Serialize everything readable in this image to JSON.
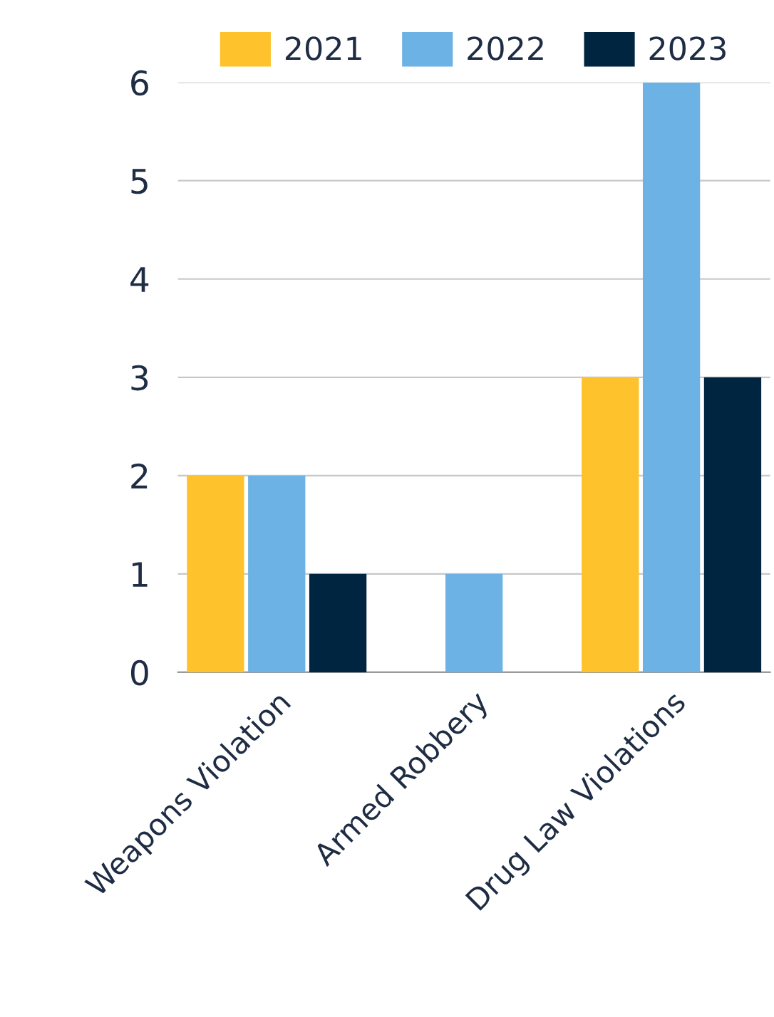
{
  "chart_data": {
    "type": "bar",
    "categories": [
      "Weapons Violation",
      "Armed Robbery",
      "Drug Law Violations"
    ],
    "series": [
      {
        "name": "2021",
        "color": "#fec22d",
        "values": [
          2,
          0,
          3
        ]
      },
      {
        "name": "2022",
        "color": "#6cb2e4",
        "values": [
          2,
          1,
          6
        ]
      },
      {
        "name": "2023",
        "color": "#002540",
        "values": [
          1,
          0,
          3
        ]
      }
    ],
    "ylim": [
      0,
      6
    ],
    "yticks": [
      0,
      1,
      2,
      3,
      4,
      5,
      6
    ],
    "grid": "y",
    "legend": "top"
  }
}
